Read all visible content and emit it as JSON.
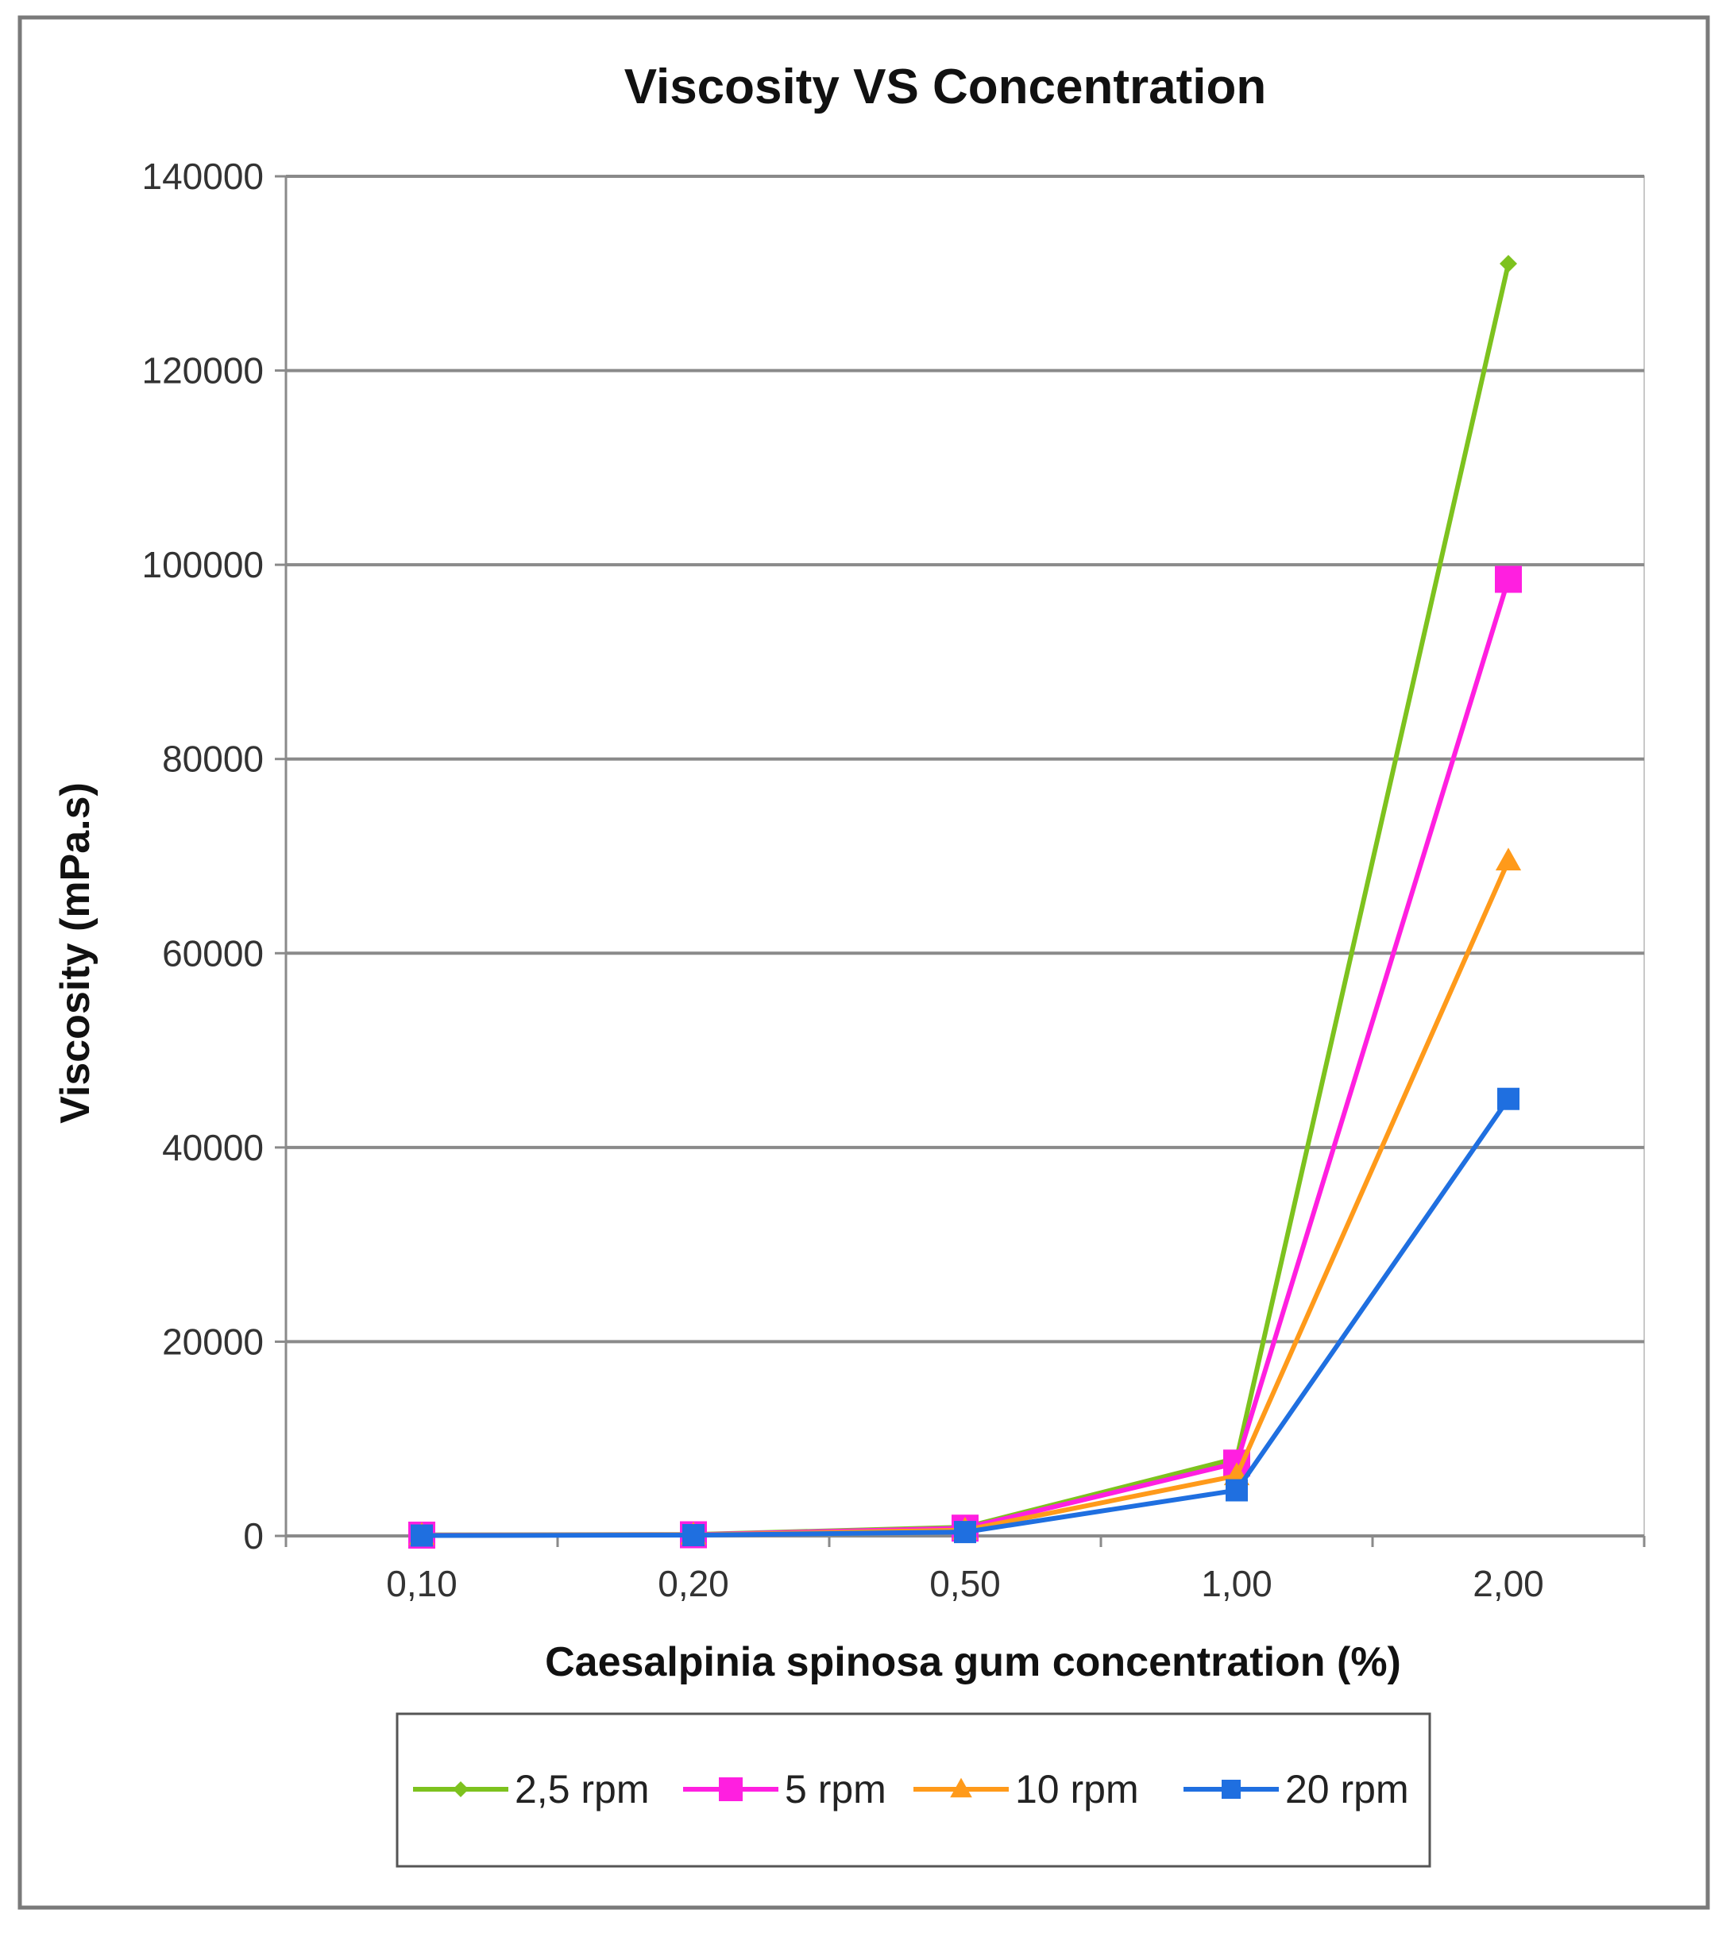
{
  "chart_data": {
    "type": "line",
    "title": "Viscosity VS Concentration",
    "xlabel": "Caesalpinia spinosa gum concentration (%)",
    "ylabel": "Viscosity (mPa.s)",
    "categories": [
      "0,10",
      "0,20",
      "0,50",
      "1,00",
      "2,00"
    ],
    "ylim": [
      0,
      140000
    ],
    "yticks": [
      0,
      20000,
      40000,
      60000,
      80000,
      100000,
      120000,
      140000
    ],
    "ytick_labels": [
      "0",
      "20000",
      "40000",
      "60000",
      "80000",
      "100000",
      "120000",
      "140000"
    ],
    "grid": "horizontal",
    "legend_position": "bottom",
    "series": [
      {
        "name": "2,5 rpm",
        "color": "#7DC21E",
        "marker": "diamond",
        "values": [
          100,
          150,
          900,
          8000,
          131000
        ]
      },
      {
        "name": "5 rpm",
        "color": "#FF1FE0",
        "marker": "square",
        "values": [
          80,
          120,
          800,
          7500,
          98500
        ]
      },
      {
        "name": "10 rpm",
        "color": "#FF9A1A",
        "marker": "triangle",
        "values": [
          60,
          100,
          600,
          6200,
          69500
        ]
      },
      {
        "name": "20 rpm",
        "color": "#1F6FE0",
        "marker": "square",
        "values": [
          40,
          80,
          400,
          4700,
          45000
        ]
      }
    ]
  }
}
